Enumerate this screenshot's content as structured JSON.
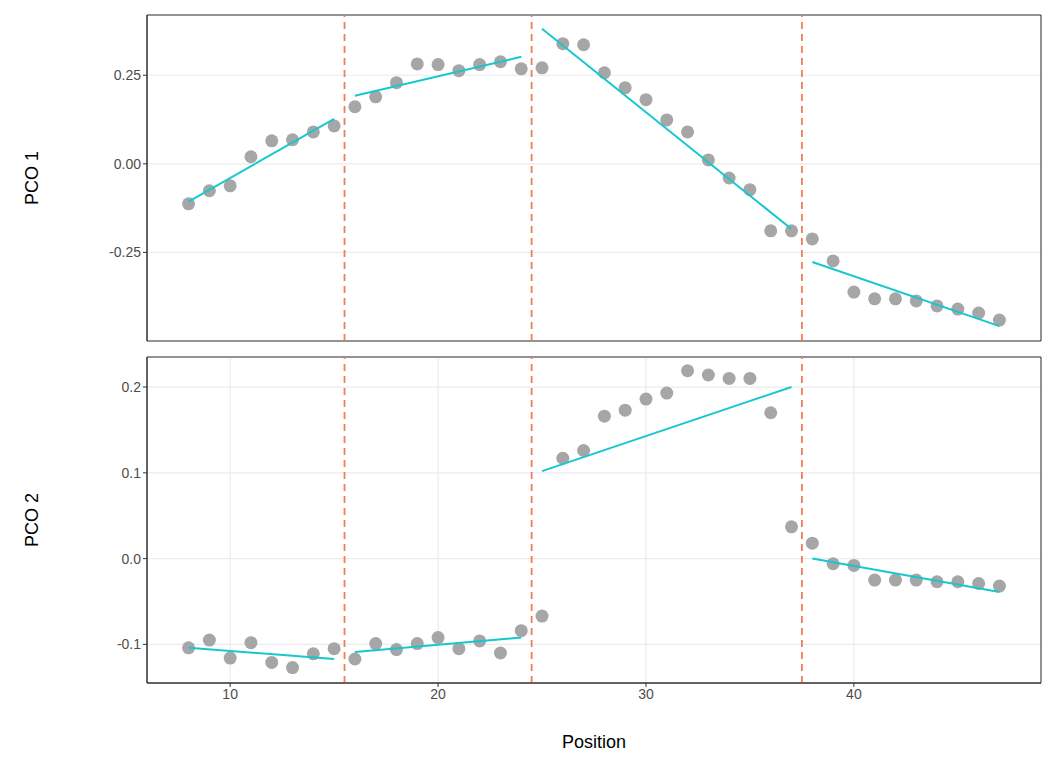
{
  "chart_data": [
    {
      "type": "scatter",
      "y_label": "PCO 1",
      "tick_labels": "y",
      "grid": true,
      "marker": "circle",
      "color": "#a6a6a6",
      "x": [
        8,
        9,
        10,
        11,
        12,
        13,
        14,
        15,
        16,
        17,
        18,
        19,
        20,
        21,
        22,
        23,
        24,
        25,
        26,
        27,
        28,
        29,
        30,
        31,
        32,
        33,
        34,
        35,
        36,
        37,
        38,
        39,
        40,
        41,
        42,
        43,
        44,
        45,
        46,
        47
      ],
      "values": [
        -0.113,
        -0.076,
        -0.062,
        0.02,
        0.065,
        0.068,
        0.09,
        0.107,
        0.161,
        0.189,
        0.229,
        0.282,
        0.28,
        0.263,
        0.28,
        0.288,
        0.268,
        0.271,
        0.339,
        0.336,
        0.257,
        0.215,
        0.181,
        0.124,
        0.09,
        0.011,
        -0.04,
        -0.073,
        -0.189,
        -0.189,
        -0.212,
        -0.274,
        -0.362,
        -0.381,
        -0.381,
        -0.387,
        -0.401,
        -0.41,
        -0.421,
        -0.441
      ],
      "xlim": [
        6,
        49
      ],
      "xticks": [
        10,
        20,
        30,
        40
      ],
      "ylim": [
        -0.5,
        0.42
      ],
      "yticks": [
        -0.25,
        {
          "value": 0,
          "label": "0.00"
        },
        0.25
      ],
      "series": [
        {
          "type": "line",
          "color": "#17c7cf",
          "x": [
            8,
            15
          ],
          "values": [
            -0.107,
            0.127
          ]
        },
        {
          "type": "line",
          "color": "#17c7cf",
          "x": [
            16,
            24
          ],
          "values": [
            0.192,
            0.302
          ]
        },
        {
          "type": "line",
          "color": "#17c7cf",
          "x": [
            25,
            37
          ],
          "values": [
            0.381,
            -0.184
          ]
        },
        {
          "type": "line",
          "color": "#17c7cf",
          "x": [
            38,
            47
          ],
          "values": [
            -0.277,
            -0.458
          ]
        }
      ],
      "vlines": {
        "x": [
          15.5,
          24.5,
          37.5
        ],
        "color": "#ee7f55",
        "line_style": "dashed"
      }
    },
    {
      "type": "scatter",
      "y_label": "PCO 2",
      "x_label": "Position",
      "grid": true,
      "marker": "circle",
      "color": "#a6a6a6",
      "x": [
        8,
        9,
        10,
        11,
        12,
        13,
        14,
        15,
        16,
        17,
        18,
        19,
        20,
        21,
        22,
        23,
        24,
        25,
        26,
        27,
        28,
        29,
        30,
        31,
        32,
        33,
        34,
        35,
        36,
        37,
        38,
        39,
        40,
        41,
        42,
        43,
        44,
        45,
        46,
        47
      ],
      "values": [
        -0.104,
        -0.095,
        -0.116,
        -0.098,
        -0.121,
        -0.127,
        -0.111,
        -0.105,
        -0.117,
        -0.099,
        -0.106,
        -0.099,
        -0.092,
        -0.105,
        -0.096,
        -0.11,
        -0.084,
        -0.067,
        0.117,
        0.126,
        0.166,
        0.173,
        0.186,
        0.193,
        0.219,
        0.214,
        0.21,
        0.21,
        0.17,
        0.037,
        0.018,
        -0.006,
        -0.008,
        -0.025,
        -0.025,
        -0.025,
        -0.027,
        -0.027,
        -0.029,
        -0.032
      ],
      "xlim": [
        6,
        49
      ],
      "xticks": [
        10,
        20,
        30,
        40
      ],
      "ylim": [
        -0.145,
        0.235
      ],
      "yticks": [
        -0.1,
        {
          "value": 0,
          "label": "0.0"
        },
        0.1,
        0.2
      ],
      "series": [
        {
          "type": "line",
          "color": "#17c7cf",
          "x": [
            8,
            15
          ],
          "values": [
            -0.104,
            -0.117
          ]
        },
        {
          "type": "line",
          "color": "#17c7cf",
          "x": [
            16,
            24
          ],
          "values": [
            -0.109,
            -0.092
          ]
        },
        {
          "type": "line",
          "color": "#17c7cf",
          "x": [
            25,
            37
          ],
          "values": [
            0.102,
            0.2
          ]
        },
        {
          "type": "line",
          "color": "#17c7cf",
          "x": [
            38,
            47
          ],
          "values": [
            0.0,
            -0.039
          ]
        }
      ],
      "vlines": {
        "x": [
          15.5,
          24.5,
          37.5
        ],
        "color": "#ee7f55",
        "line_style": "dashed"
      }
    }
  ]
}
